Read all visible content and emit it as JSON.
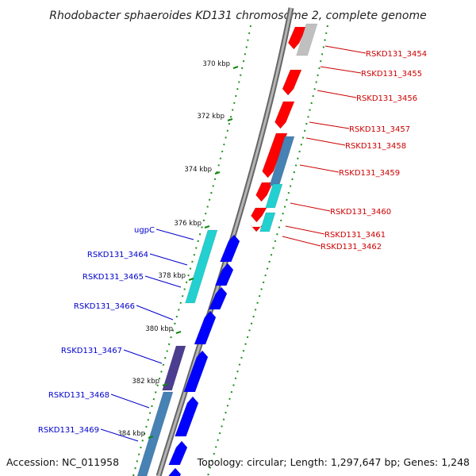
{
  "title": "Rhodobacter sphaeroides KD131 chromosome 2, complete genome",
  "accession": "Accession: NC_011958",
  "summary": "Topology: circular; Length: 1,297,647 bp; Genes: 1,248",
  "scale_labels": [
    "370 kbp",
    "372 kbp",
    "374 kbp",
    "376 kbp",
    "378 kbp",
    "380 kbp",
    "382 kbp",
    "384 kbp"
  ],
  "colors": {
    "forward_cds": "#ff0000",
    "reverse_cds": "#0000ff",
    "rna_cyan": "#22d0d0",
    "steel_blue": "#4682b4",
    "purple": "#4b3d8f",
    "grey": "#c0c0c0",
    "forward_label": "#cc0000",
    "reverse_label": "#0000cc",
    "ticks": "#118811",
    "backbone": "#888888"
  },
  "forward_genes": [
    "RSKD131_3454",
    "RSKD131_3455",
    "RSKD131_3456",
    "RSKD131_3457",
    "RSKD131_3458",
    "RSKD131_3459",
    "RSKD131_3460",
    "RSKD131_3461",
    "RSKD131_3462"
  ],
  "reverse_genes": [
    "ugpC",
    "RSKD131_3464",
    "RSKD131_3465",
    "RSKD131_3466",
    "RSKD131_3467",
    "RSKD131_3468",
    "RSKD131_3469"
  ]
}
